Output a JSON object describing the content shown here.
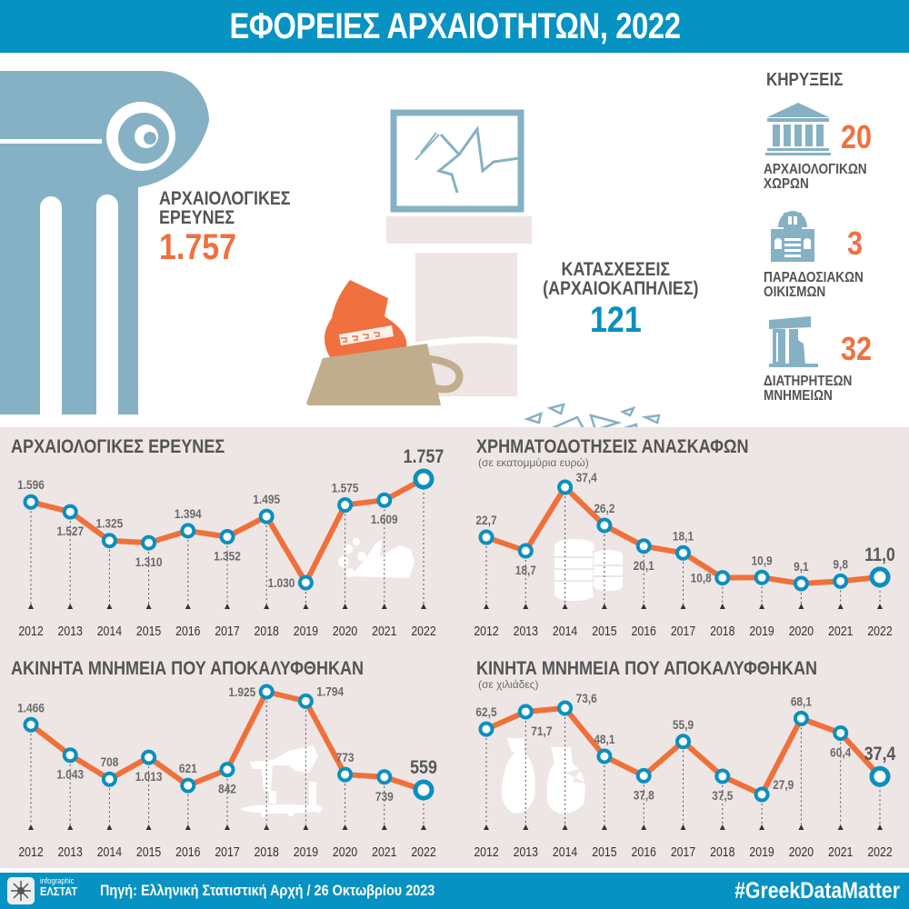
{
  "header": {
    "title": "ΕΦΟΡΕΙΕΣ ΑΡΧΑΙΟΤΗΤΩΝ, 2022"
  },
  "hero": {
    "research": {
      "label_line1": "ΑΡΧΑΙΟΛΟΓΙΚΕΣ",
      "label_line2": "ΕΡΕΥΝΕΣ",
      "value": "1.757"
    },
    "seizures": {
      "label_line1": "ΚΑΤΑΣΧΕΣΕΙΣ",
      "label_line2": "(ΑΡΧΑΙΟΚΑΠΗΛΙΕΣ)",
      "value": "121"
    },
    "declarations": {
      "title": "ΚΗΡΥΞΕΙΣ",
      "items": [
        {
          "icon": "temple-icon",
          "value": "20",
          "label_line1": "ΑΡΧΑΙΟΛΟΓΙΚΩΝ",
          "label_line2": "ΧΩΡΩΝ"
        },
        {
          "icon": "traditional-house-icon",
          "value": "3",
          "label_line1": "ΠΑΡΑΔΟΣΙΑΚΩΝ",
          "label_line2": "ΟΙΚΙΣΜΩΝ"
        },
        {
          "icon": "ruined-column-icon",
          "value": "32",
          "label_line1": "ΔΙΑΤΗΡΗΤΕΩΝ",
          "label_line2": "ΜΝΗΜΕΙΩΝ"
        }
      ]
    }
  },
  "colors": {
    "brand_blue": "#0692c2",
    "line_orange": "#f0703c",
    "marker_blue": "#0a8fc0",
    "column_blue": "#86b1c4",
    "panel_bg": "#ede6e4",
    "text_dark": "#545456"
  },
  "chart_data": [
    {
      "type": "line",
      "title": "ΑΡΧΑΙΟΛΟΓΙΚΕΣ ΕΡΕΥΝΕΣ",
      "subtitle": "",
      "x": [
        "2012",
        "2013",
        "2014",
        "2015",
        "2016",
        "2017",
        "2018",
        "2019",
        "2020",
        "2021",
        "2022"
      ],
      "values": [
        1596,
        1527,
        1325,
        1310,
        1394,
        1352,
        1495,
        1030,
        1575,
        1609,
        1757
      ],
      "labels": [
        "1.596",
        "1.527",
        "1.325",
        "1.310",
        "1.394",
        "1.352",
        "1.495",
        "1.030",
        "1.575",
        "1.609",
        "1.757"
      ],
      "label_pos": [
        "above",
        "below",
        "above",
        "below",
        "above",
        "below",
        "above",
        "left",
        "above",
        "below",
        "above"
      ],
      "ylim": [
        1030,
        1757
      ],
      "grid": false,
      "illustration": "pottery-shards-icon"
    },
    {
      "type": "line",
      "title": "ΧΡΗΜΑΤΟΔΟΤΗΣΕΙΣ ΑΝΑΣΚΑΦΩΝ",
      "subtitle": "(σε εκατομμύρια ευρώ)",
      "x": [
        "2012",
        "2013",
        "2014",
        "2015",
        "2016",
        "2017",
        "2018",
        "2019",
        "2020",
        "2021",
        "2022"
      ],
      "values": [
        22.7,
        18.7,
        37.4,
        26.2,
        20.1,
        18.1,
        10.8,
        10.9,
        9.1,
        9.8,
        11.0
      ],
      "labels": [
        "22,7",
        "18,7",
        "37,4",
        "26,2",
        "20,1",
        "18,1",
        "10,8",
        "10,9",
        "9,1",
        "9,8",
        "11,0"
      ],
      "label_pos": [
        "above",
        "below",
        "right",
        "above",
        "below",
        "above",
        "left",
        "above",
        "above",
        "above",
        "above"
      ],
      "ylim": [
        9.1,
        37.4
      ],
      "grid": false,
      "illustration": "coins-icon"
    },
    {
      "type": "line",
      "title": "ΑΚΙΝΗΤΑ ΜΝΗΜΕΙΑ ΠΟΥ ΑΠΟΚΑΛΥΦΘΗΚΑΝ",
      "subtitle": "",
      "x": [
        "2012",
        "2013",
        "2014",
        "2015",
        "2016",
        "2017",
        "2018",
        "2019",
        "2020",
        "2021",
        "2022"
      ],
      "values": [
        1466,
        1043,
        708,
        1013,
        621,
        842,
        1925,
        1794,
        773,
        739,
        559
      ],
      "labels": [
        "1.466",
        "1.043",
        "708",
        "1.013",
        "621",
        "842",
        "1.925",
        "1.794",
        "773",
        "739",
        "559"
      ],
      "label_pos": [
        "above",
        "below",
        "above",
        "below",
        "above",
        "below",
        "left",
        "right",
        "above",
        "below",
        "above"
      ],
      "ylim": [
        559,
        1925
      ],
      "grid": false,
      "illustration": "ruins-icon"
    },
    {
      "type": "line",
      "title": "ΚΙΝΗΤΑ ΜΝΗΜΕΙΑ ΠΟΥ ΑΠΟΚΑΛΥΦΘΗΚΑΝ",
      "subtitle": "(σε χιλιάδες)",
      "x": [
        "2012",
        "2013",
        "2014",
        "2015",
        "2016",
        "2017",
        "2018",
        "2019",
        "2020",
        "2021",
        "2022"
      ],
      "values": [
        62.5,
        71.7,
        73.6,
        48.1,
        37.8,
        55.9,
        37.5,
        27.9,
        68.1,
        60.4,
        37.4
      ],
      "labels": [
        "62,5",
        "71,7",
        "73,6",
        "48,1",
        "37,8",
        "55,9",
        "37,5",
        "27,9",
        "68,1",
        "60,4",
        "37,4"
      ],
      "label_pos": [
        "above",
        "below-right",
        "right",
        "above",
        "below",
        "above",
        "below",
        "right",
        "above",
        "below",
        "above"
      ],
      "ylim": [
        27.9,
        73.6
      ],
      "grid": false,
      "illustration": "vases-icon"
    }
  ],
  "footer": {
    "logo_small": "infographic",
    "logo_big": "ΕΛΣΤΑΤ",
    "source": "Πηγή: Ελληνική Στατιστική Αρχή / 26 Οκτωβρίου 2023",
    "hashtag": "#GreekDataMatter"
  }
}
